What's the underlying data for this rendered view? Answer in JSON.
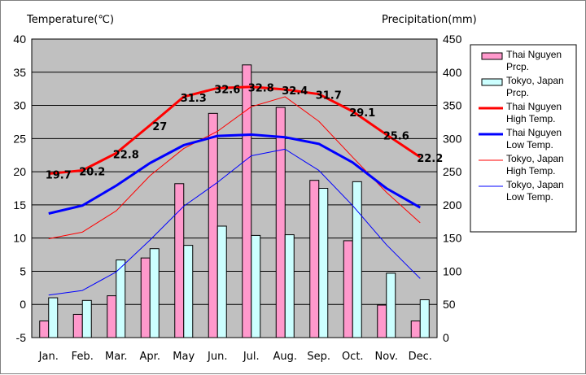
{
  "chart_data": {
    "type": "bar+line",
    "left_axis_title": "Temperature(℃)",
    "right_axis_title": "Precipitation(mm)",
    "categories": [
      "Jan.",
      "Feb.",
      "Mar.",
      "Apr.",
      "May",
      "Jun.",
      "Jul.",
      "Aug.",
      "Sep.",
      "Oct.",
      "Nov.",
      "Dec."
    ],
    "temp_axis": {
      "min": -5,
      "max": 40,
      "ticks": [
        "-5",
        "0",
        "5",
        "10",
        "15",
        "20",
        "25",
        "30",
        "35",
        "40"
      ]
    },
    "precip_axis": {
      "min": 0,
      "max": 450,
      "ticks": [
        "0",
        "50",
        "100",
        "150",
        "200",
        "250",
        "300",
        "350",
        "400",
        "450"
      ]
    },
    "grid": true,
    "legend_position": "right",
    "bars": [
      {
        "name": "Thai Nguyen Prcp.",
        "legend_lines": [
          "Thai Nguyen",
          "Prcp."
        ],
        "color": "#ff99cc",
        "values": [
          25,
          35,
          63,
          120,
          232,
          338,
          411,
          347,
          237,
          146,
          49,
          25
        ]
      },
      {
        "name": "Tokyo, Japan Prcp.",
        "legend_lines": [
          "Tokyo, Japan",
          "Prcp."
        ],
        "color": "#ccffff",
        "values": [
          60,
          56,
          117,
          134,
          139,
          168,
          154,
          155,
          225,
          235,
          97,
          57
        ]
      }
    ],
    "lines": [
      {
        "name": "Thai Nguyen High Temp.",
        "legend_lines": [
          "Thai Nguyen",
          "High Temp."
        ],
        "color": "#ff0000",
        "width": 3,
        "values": [
          19.7,
          20.2,
          22.8,
          27,
          31.3,
          32.6,
          32.8,
          32.4,
          31.7,
          29.1,
          25.6,
          22.2
        ],
        "labels": [
          "19.7",
          "20.2",
          "22.8",
          "27",
          "31.3",
          "32.6",
          "32.8",
          "32.4",
          "31.7",
          "29.1",
          "25.6",
          "22.2"
        ]
      },
      {
        "name": "Thai Nguyen Low Temp.",
        "legend_lines": [
          "Thai Nguyen",
          "Low Temp."
        ],
        "color": "#0000ff",
        "width": 3,
        "values": [
          13.7,
          14.9,
          17.9,
          21.3,
          24,
          25.4,
          25.6,
          25.2,
          24.2,
          21.4,
          17.5,
          14.6
        ]
      },
      {
        "name": "Tokyo, Japan High Temp.",
        "legend_lines": [
          "Tokyo, Japan",
          "High Temp."
        ],
        "color": "#ff0000",
        "width": 1,
        "values": [
          9.9,
          10.9,
          14.1,
          19.4,
          23.5,
          26.1,
          29.8,
          31.3,
          27.6,
          22.2,
          16.9,
          12.3
        ]
      },
      {
        "name": "Tokyo, Japan Low Temp.",
        "legend_lines": [
          "Tokyo, Japan",
          "Low Temp."
        ],
        "color": "#0000ff",
        "width": 1,
        "values": [
          1.4,
          2.1,
          4.9,
          9.7,
          14.8,
          18.4,
          22.4,
          23.4,
          20.2,
          14.9,
          9,
          3.9
        ]
      }
    ]
  }
}
